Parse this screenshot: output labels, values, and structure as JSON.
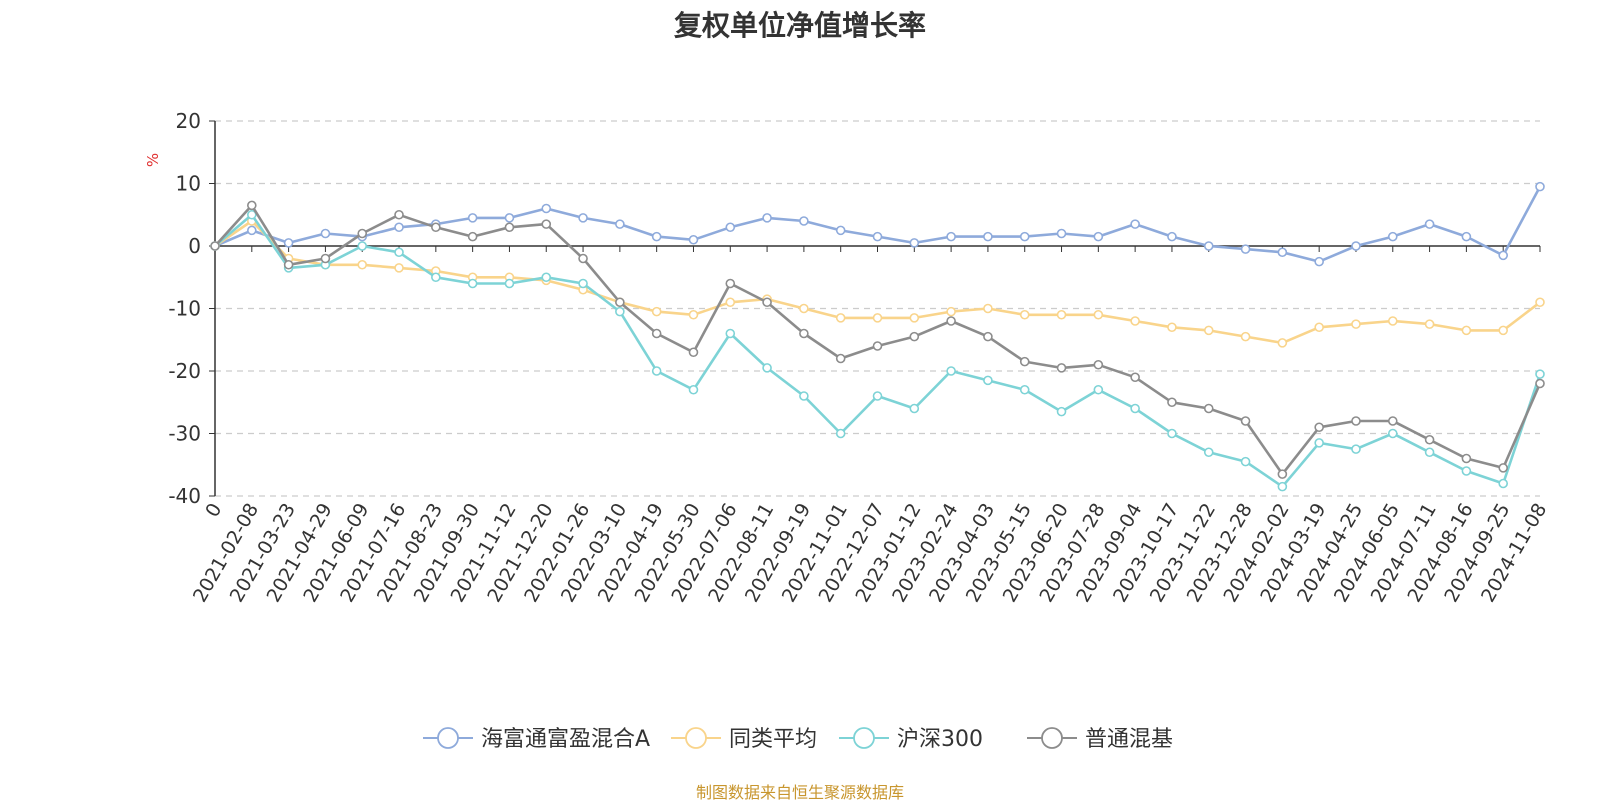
{
  "chart_data": {
    "type": "line",
    "title": "复权单位净值增长率",
    "ylabel": "%",
    "ylim": [
      -40,
      20
    ],
    "yticks": [
      20,
      10,
      0,
      -10,
      -20,
      -30,
      -40
    ],
    "grid": true,
    "legend_position": "bottom",
    "xtick_labels": [
      "0",
      "2021-02-08",
      "2021-03-23",
      "2021-04-29",
      "2021-06-09",
      "2021-07-16",
      "2021-08-23",
      "2021-09-30",
      "2021-11-12",
      "2021-12-20",
      "2022-01-26",
      "2022-03-10",
      "2022-04-19",
      "2022-05-30",
      "2022-07-06",
      "2022-08-11",
      "2022-09-19",
      "2022-11-01",
      "2022-12-07",
      "2023-01-12",
      "2023-02-24",
      "2023-04-03",
      "2023-05-15",
      "2023-06-20",
      "2023-07-28",
      "2023-09-04",
      "2023-10-17",
      "2023-11-22",
      "2023-12-28",
      "2024-02-02",
      "2024-03-19",
      "2024-04-25",
      "2024-06-05",
      "2024-07-11",
      "2024-08-16",
      "2024-09-25",
      "2024-11-08"
    ],
    "series": [
      {
        "name": "海富通富盈混合A",
        "color": "#8eaadb",
        "values": [
          0,
          2.5,
          0.5,
          2,
          1.5,
          3,
          3.5,
          4.5,
          4.5,
          6,
          4.5,
          3.5,
          1.5,
          1,
          3,
          4.5,
          4,
          2.5,
          1.5,
          0.5,
          1.5,
          1.5,
          1.5,
          2,
          1.5,
          3.5,
          1.5,
          0,
          -0.5,
          -1,
          -2.5,
          0,
          1.5,
          3.5,
          1.5,
          -1.5,
          9.5
        ]
      },
      {
        "name": "同类平均",
        "color": "#f9d48b",
        "values": [
          0,
          4,
          -2,
          -3,
          -3,
          -3.5,
          -4,
          -5,
          -5,
          -5.5,
          -7,
          -9,
          -10.5,
          -11,
          -9,
          -8.5,
          -10,
          -11.5,
          -11.5,
          -11.5,
          -10.5,
          -10,
          -11,
          -11,
          -11,
          -12,
          -13,
          -13.5,
          -14.5,
          -15.5,
          -13,
          -12.5,
          -12,
          -12.5,
          -13.5,
          -13.5,
          -9
        ]
      },
      {
        "name": "沪深300",
        "color": "#7dd3d6",
        "values": [
          0,
          5,
          -3.5,
          -3,
          0,
          -1,
          -5,
          -6,
          -6,
          -5,
          -6,
          -10.5,
          -20,
          -23,
          -14,
          -19.5,
          -24,
          -30,
          -24,
          -26,
          -20,
          -21.5,
          -23,
          -26.5,
          -23,
          -26,
          -30,
          -33,
          -34.5,
          -38.5,
          -31.5,
          -32.5,
          -30,
          -33,
          -36,
          -38,
          -20.5
        ]
      },
      {
        "name": "普通混基",
        "color": "#8c8c8c",
        "values": [
          0,
          6.5,
          -3,
          -2,
          2,
          5,
          3,
          1.5,
          3,
          3.5,
          -2,
          -9,
          -14,
          -17,
          -6,
          -9,
          -14,
          -18,
          -16,
          -14.5,
          -12,
          -14.5,
          -18.5,
          -19.5,
          -19,
          -21,
          -25,
          -26,
          -28,
          -36.5,
          -29,
          -28,
          -28,
          -31,
          -34,
          -35.5,
          -22
        ]
      }
    ]
  },
  "source_note": "制图数据来自恒生聚源数据库"
}
